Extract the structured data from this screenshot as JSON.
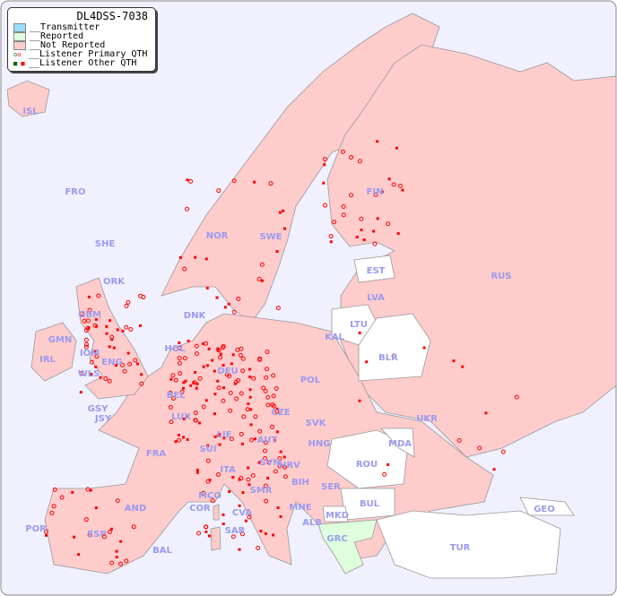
{
  "title": "DL4DSS-7038",
  "legend": [
    {
      "label": "__Transmitter",
      "color": "#99ddff"
    },
    {
      "label": "__Reported",
      "color": "#ddffdd"
    },
    {
      "label": "__Not Reported",
      "color": "#ffcccc"
    },
    {
      "label": "__Listener Primary QTH",
      "marker": "open-circle"
    },
    {
      "label": "__Listener Other QTH",
      "marker": "filled-square"
    }
  ],
  "colors": {
    "sea": "#f0f0ff",
    "not_reported": "#ffcccc",
    "reported": "#ddffdd",
    "no_data": "#ffffff",
    "listener": "#ff0000",
    "label": "#9a9aee"
  },
  "countries": [
    "ISL",
    "FRO",
    "SHE",
    "ORK",
    "NOR",
    "SWE",
    "FIN",
    "RUS",
    "EST",
    "LVA",
    "LTU",
    "KAL",
    "BLR",
    "DNK",
    "HOL",
    "IRL",
    "GBM",
    "GMN",
    "IOM",
    "WLS",
    "ENG",
    "DEU",
    "POL",
    "UKR",
    "BEL",
    "LUX",
    "GSY",
    "JSY",
    "CZE",
    "SVK",
    "AUT",
    "HNG",
    "MDA",
    "FRA",
    "LIE",
    "SUI",
    "SVN",
    "HRV",
    "ROU",
    "ITA",
    "BIH",
    "SER",
    "BUL",
    "MCO",
    "COR",
    "SMR",
    "CVA",
    "MNE",
    "AND",
    "ALB",
    "MKD",
    "GEO",
    "POR",
    "ESP",
    "SAR",
    "GRC",
    "BAL",
    "TUR"
  ]
}
